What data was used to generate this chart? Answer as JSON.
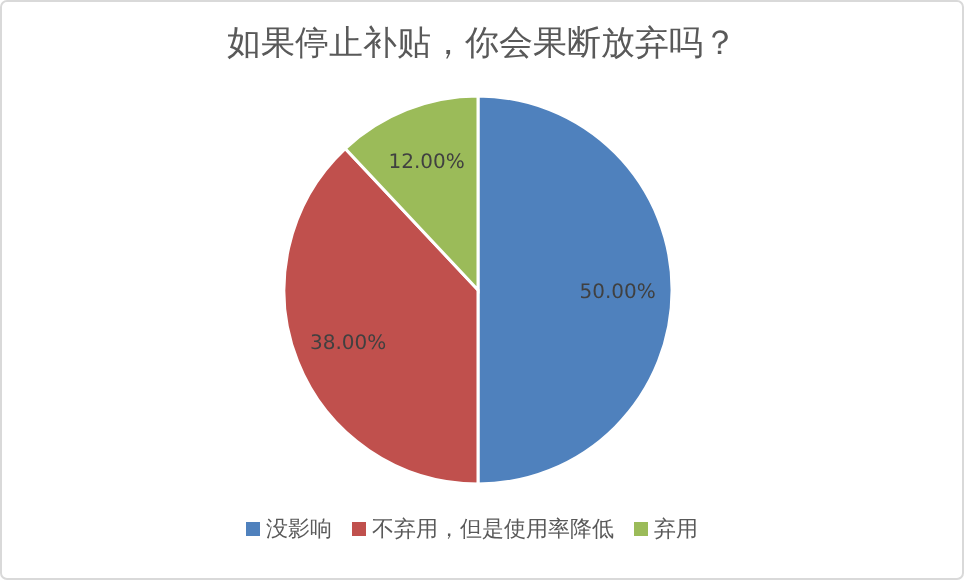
{
  "chart_data": {
    "type": "pie",
    "title": "如果停止补贴，你会果断放弃吗？",
    "categories": [
      "没影响",
      "不弃用，但是使用率降低",
      "弃用"
    ],
    "values": [
      50,
      38,
      12
    ],
    "colors": [
      "#4f81bd",
      "#c0504d",
      "#9bbb59"
    ],
    "value_labels": [
      "50.00%",
      "38.00%",
      "12.00%"
    ],
    "legend": "bottom"
  }
}
